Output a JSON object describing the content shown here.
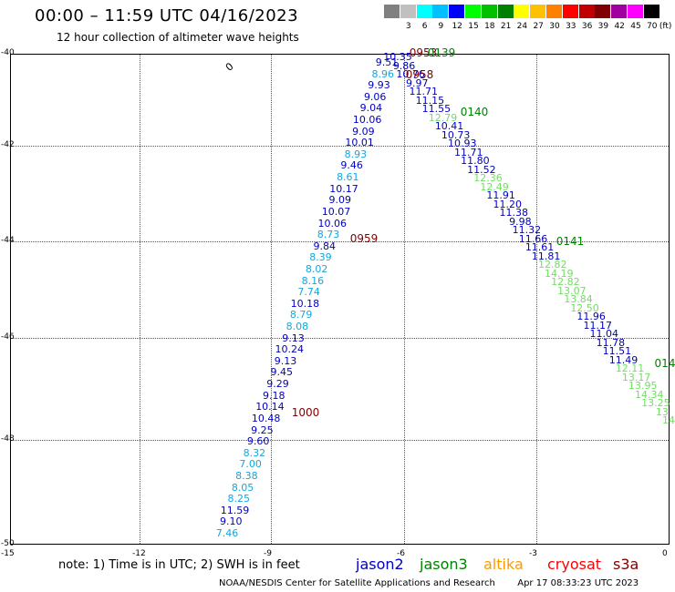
{
  "header": {
    "title": "00:00 – 11:59 UTC 04/16/2023",
    "subtitle": "12 hour collection of altimeter wave heights"
  },
  "scale": {
    "unit": "(ft)",
    "bins": [
      {
        "label": "",
        "color": "#808080"
      },
      {
        "label": "3",
        "color": "#c0c0c0"
      },
      {
        "label": "6",
        "color": "#00ffff"
      },
      {
        "label": "9",
        "color": "#00c0ff"
      },
      {
        "label": "12",
        "color": "#0000ff"
      },
      {
        "label": "15",
        "color": "#00ff00"
      },
      {
        "label": "18",
        "color": "#00c000"
      },
      {
        "label": "21",
        "color": "#008000"
      },
      {
        "label": "24",
        "color": "#ffff00"
      },
      {
        "label": "27",
        "color": "#ffc000"
      },
      {
        "label": "30",
        "color": "#ff8000"
      },
      {
        "label": "33",
        "color": "#ff0000"
      },
      {
        "label": "36",
        "color": "#c00000"
      },
      {
        "label": "39",
        "color": "#800000"
      },
      {
        "label": "42",
        "color": "#a000a0"
      },
      {
        "label": "45",
        "color": "#ff00ff"
      },
      {
        "label": "70",
        "color": "#000000"
      }
    ]
  },
  "axes": {
    "x_ticks": [
      "-15",
      "-12",
      "-9",
      "-6",
      "-3",
      "0"
    ],
    "y_ticks": [
      "-40",
      "-42",
      "-44",
      "-46",
      "-48",
      "-50"
    ]
  },
  "colors": {
    "blue": "#0000c0",
    "cyan": "#10a8e0",
    "green": "#70e060",
    "maroon": "#800000",
    "dkgreen": "#008000",
    "orange": "#ff9900",
    "red": "#ff0000"
  },
  "chart_data": {
    "type": "scatter",
    "title": "00:00 – 11:59 UTC 04/16/2023",
    "subtitle": "12 hour collection of altimeter wave heights",
    "xlim": [
      -15,
      0
    ],
    "ylim": [
      -50,
      -40
    ],
    "track_left": [
      [
        "9.51",
        "b"
      ],
      [
        "8.96",
        "c"
      ],
      [
        "9.93",
        "b"
      ],
      [
        "9.06",
        "b"
      ],
      [
        "9.04",
        "b"
      ],
      [
        "10.06",
        "b"
      ],
      [
        "9.09",
        "b"
      ],
      [
        "10.01",
        "b"
      ],
      [
        "8.93",
        "c"
      ],
      [
        "9.46",
        "b"
      ],
      [
        "8.61",
        "c"
      ],
      [
        "10.17",
        "b"
      ],
      [
        "9.09",
        "b"
      ],
      [
        "10.07",
        "b"
      ],
      [
        "10.06",
        "b"
      ],
      [
        "8.73",
        "c"
      ],
      [
        "9.84",
        "b"
      ],
      [
        "8.39",
        "c"
      ],
      [
        "8.02",
        "c"
      ],
      [
        "8.16",
        "c"
      ],
      [
        "7.74",
        "c"
      ],
      [
        "10.18",
        "b"
      ],
      [
        "8.79",
        "c"
      ],
      [
        "8.08",
        "c"
      ],
      [
        "9.13",
        "b"
      ],
      [
        "10.24",
        "b"
      ],
      [
        "9.13",
        "b"
      ],
      [
        "9.45",
        "b"
      ],
      [
        "9.29",
        "b"
      ],
      [
        "9.18",
        "b"
      ],
      [
        "10.14",
        "b"
      ],
      [
        "10.48",
        "b"
      ],
      [
        "9.25",
        "b"
      ],
      [
        "9.60",
        "b"
      ],
      [
        "8.32",
        "c"
      ],
      [
        "7.00",
        "c"
      ],
      [
        "8.38",
        "c"
      ],
      [
        "8.05",
        "c"
      ],
      [
        "8.25",
        "c"
      ],
      [
        "11.59",
        "b"
      ],
      [
        "9.10",
        "b"
      ],
      [
        "7.46",
        "c"
      ]
    ],
    "track_right": [
      [
        "10.35",
        "b"
      ],
      [
        "9.86",
        "b"
      ],
      [
        "10.76",
        "b"
      ],
      [
        "9.97",
        "b"
      ],
      [
        "11.71",
        "b"
      ],
      [
        "11.15",
        "b"
      ],
      [
        "11.55",
        "b"
      ],
      [
        "12.79",
        "g"
      ],
      [
        "10.41",
        "b"
      ],
      [
        "10.73",
        "b"
      ],
      [
        "10.93",
        "b"
      ],
      [
        "11.71",
        "b"
      ],
      [
        "11.80",
        "b"
      ],
      [
        "11.52",
        "b"
      ],
      [
        "12.36",
        "g"
      ],
      [
        "12.49",
        "g"
      ],
      [
        "11.91",
        "b"
      ],
      [
        "11.20",
        "b"
      ],
      [
        "11.38",
        "b"
      ],
      [
        "9.98",
        "b"
      ],
      [
        "11.32",
        "b"
      ],
      [
        "11.66",
        "b"
      ],
      [
        "11.61",
        "b"
      ],
      [
        "11.81",
        "b"
      ],
      [
        "12.82",
        "g"
      ],
      [
        "14.19",
        "g"
      ],
      [
        "12.82",
        "g"
      ],
      [
        "13.07",
        "g"
      ],
      [
        "13.84",
        "g"
      ],
      [
        "12.50",
        "g"
      ],
      [
        "11.96",
        "b"
      ],
      [
        "11.17",
        "b"
      ],
      [
        "11.04",
        "b"
      ],
      [
        "11.78",
        "b"
      ],
      [
        "11.51",
        "b"
      ],
      [
        "11.49",
        "b"
      ],
      [
        "12.11",
        "g"
      ],
      [
        "13.17",
        "g"
      ],
      [
        "13.95",
        "g"
      ],
      [
        "14.34",
        "g"
      ],
      [
        "13.25",
        "g"
      ],
      [
        "13",
        "g"
      ],
      [
        "14",
        "g"
      ]
    ],
    "time_marks": [
      {
        "label": "0953",
        "color": "maroon"
      },
      {
        "label": "0139",
        "color": "dkgreen"
      },
      {
        "label": "0958",
        "color": "maroon"
      },
      {
        "label": "0140",
        "color": "dkgreen"
      },
      {
        "label": "0959",
        "color": "maroon"
      },
      {
        "label": "0141",
        "color": "dkgreen"
      },
      {
        "label": "1000",
        "color": "maroon"
      },
      {
        "label": "014",
        "color": "dkgreen"
      }
    ],
    "stray_label": "0"
  },
  "legend": {
    "note": "note:  1) Time is in UTC;  2) SWH is in feet",
    "missions": [
      {
        "label": "jason2",
        "color": "#0000c0"
      },
      {
        "label": "jason3",
        "color": "#008000"
      },
      {
        "label": "altika",
        "color": "#ff9900"
      },
      {
        "label": "cryosat",
        "color": "#ff0000"
      },
      {
        "label": "s3a",
        "color": "#800000"
      }
    ]
  },
  "footer": {
    "credit": "NOAA/NESDIS Center for Satellite Applications and Research",
    "timestamp": "Apr 17 08:33:23 UTC 2023"
  }
}
